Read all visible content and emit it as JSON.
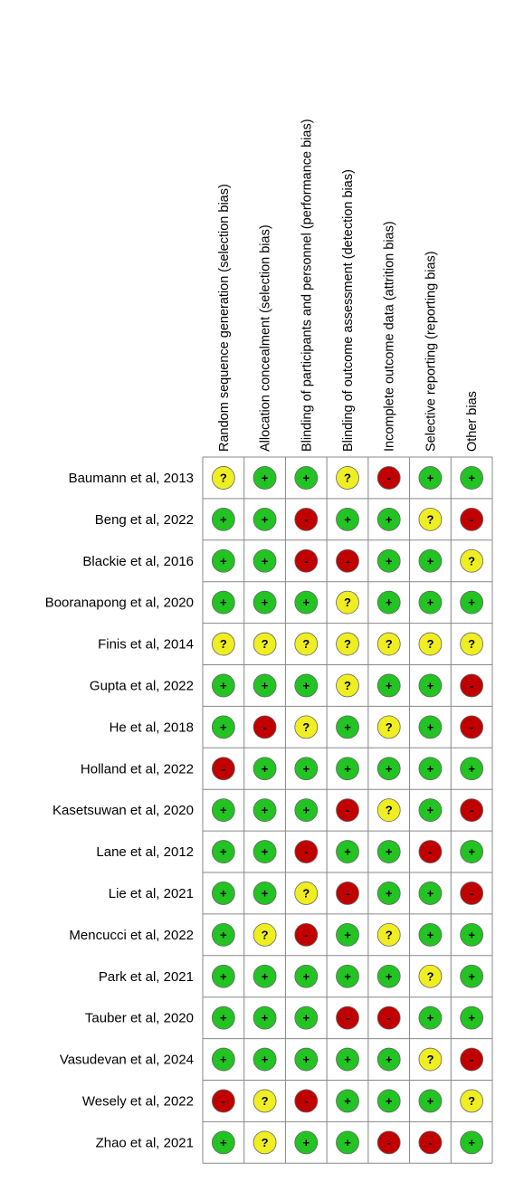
{
  "columns": [
    "Random sequence generation (selection bias)",
    "Allocation concealment (selection bias)",
    "Blinding of participants and personnel (performance bias)",
    "Blinding of outcome assessment (detection bias)",
    "Incomplete outcome data (attrition bias)",
    "Selective reporting (reporting bias)",
    "Other bias"
  ],
  "colors": {
    "+": "#22c322",
    "-": "#c00000",
    "?": "#eeee22"
  },
  "rows": [
    {
      "study": "Baumann et al, 2013",
      "judgments": [
        "?",
        "+",
        "+",
        "?",
        "-",
        "+",
        "+"
      ]
    },
    {
      "study": "Beng et al, 2022",
      "judgments": [
        "+",
        "+",
        "-",
        "+",
        "+",
        "?",
        "-"
      ]
    },
    {
      "study": "Blackie et al, 2016",
      "judgments": [
        "+",
        "+",
        "-",
        "-",
        "+",
        "+",
        "?"
      ]
    },
    {
      "study": "Booranapong et al, 2020",
      "judgments": [
        "+",
        "+",
        "+",
        "?",
        "+",
        "+",
        "+"
      ]
    },
    {
      "study": "Finis et al, 2014",
      "judgments": [
        "?",
        "?",
        "?",
        "?",
        "?",
        "?",
        "?"
      ]
    },
    {
      "study": "Gupta et al, 2022",
      "judgments": [
        "+",
        "+",
        "+",
        "?",
        "+",
        "+",
        "-"
      ]
    },
    {
      "study": "He et al, 2018",
      "judgments": [
        "+",
        "-",
        "?",
        "+",
        "?",
        "+",
        "-"
      ]
    },
    {
      "study": "Holland et al, 2022",
      "judgments": [
        "-",
        "+",
        "+",
        "+",
        "+",
        "+",
        "+"
      ]
    },
    {
      "study": "Kasetsuwan et al, 2020",
      "judgments": [
        "+",
        "+",
        "+",
        "-",
        "?",
        "+",
        "-"
      ]
    },
    {
      "study": "Lane et al, 2012",
      "judgments": [
        "+",
        "+",
        "-",
        "+",
        "+",
        "-",
        "+"
      ]
    },
    {
      "study": "Lie et al, 2021",
      "judgments": [
        "+",
        "+",
        "?",
        "-",
        "+",
        "+",
        "-"
      ]
    },
    {
      "study": "Mencucci et al, 2022",
      "judgments": [
        "+",
        "?",
        "-",
        "+",
        "?",
        "+",
        "+"
      ]
    },
    {
      "study": "Park et al, 2021",
      "judgments": [
        "+",
        "+",
        "+",
        "+",
        "+",
        "?",
        "+"
      ]
    },
    {
      "study": "Tauber et al, 2020",
      "judgments": [
        "+",
        "+",
        "+",
        "-",
        "-",
        "+",
        "+"
      ]
    },
    {
      "study": "Vasudevan et al, 2024",
      "judgments": [
        "+",
        "+",
        "+",
        "+",
        "+",
        "?",
        "-"
      ]
    },
    {
      "study": "Wesely et al, 2022",
      "judgments": [
        "-",
        "?",
        "-",
        "+",
        "+",
        "+",
        "?"
      ]
    },
    {
      "study": "Zhao et al, 2021",
      "judgments": [
        "+",
        "?",
        "+",
        "+",
        "-",
        "-",
        "+"
      ]
    }
  ]
}
